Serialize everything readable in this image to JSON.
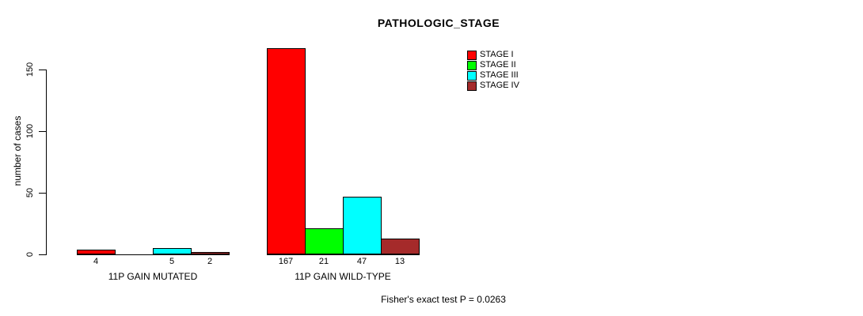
{
  "chart_data": {
    "type": "bar",
    "title": "PATHOLOGIC_STAGE",
    "ylabel": "number of cases",
    "xlabel": "",
    "categories": [
      "11P GAIN MUTATED",
      "11P GAIN WILD-TYPE"
    ],
    "series": [
      {
        "name": "STAGE I",
        "color": "#FF0000",
        "values": [
          4,
          167
        ]
      },
      {
        "name": "STAGE II",
        "color": "#00FF00",
        "values": [
          0,
          21
        ]
      },
      {
        "name": "STAGE III",
        "color": "#00FFFF",
        "values": [
          5,
          47
        ]
      },
      {
        "name": "STAGE IV",
        "color": "#A52A2A",
        "values": [
          2,
          13
        ]
      }
    ],
    "yticks": [
      0,
      50,
      100,
      150
    ],
    "ylim": [
      0,
      170
    ],
    "grid": false,
    "legend_position": "top-right",
    "value_labels_shown": true,
    "zero_value_labels_hidden": true,
    "annotation": "Fisher's exact test P = 0.0263"
  }
}
